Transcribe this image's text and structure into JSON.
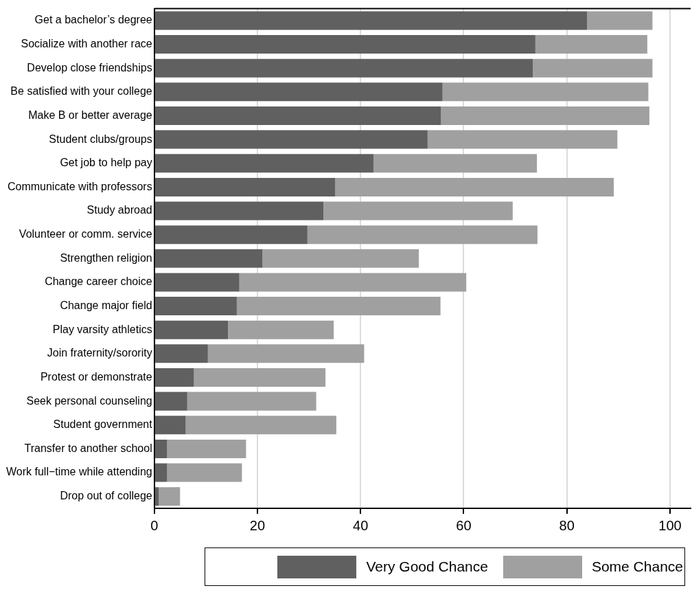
{
  "chart_data": {
    "type": "bar",
    "orientation": "horizontal",
    "stacked": true,
    "categories": [
      "Get a bachelor’s degree",
      "Socialize with another race",
      "Develop close friendships",
      "Be satisfied with your college",
      "Make B or better average",
      "Student clubs/groups",
      "Get job to help pay",
      "Communicate with professors",
      "Study abroad",
      "Volunteer or comm. service",
      "Strengthen religion",
      "Change career choice",
      "Change major field",
      "Play varsity athletics",
      "Join fraternity/sorority",
      "Protest or demonstrate",
      "Seek personal counseling",
      "Student government",
      "Transfer to another school",
      "Work full−time while attending",
      "Drop out of college"
    ],
    "series": [
      {
        "name": "Very Good Chance",
        "color": "#606060",
        "values": [
          83.9,
          73.9,
          73.4,
          55.9,
          55.6,
          53.0,
          42.5,
          35.1,
          32.8,
          29.7,
          21.0,
          16.5,
          16.0,
          14.3,
          10.4,
          7.7,
          6.4,
          6.1,
          2.5,
          2.5,
          0.9
        ]
      },
      {
        "name": "Some Chance",
        "color": "#a0a0a0",
        "values": [
          12.7,
          21.7,
          23.2,
          39.9,
          40.4,
          36.8,
          31.7,
          54.0,
          36.7,
          44.6,
          30.3,
          44.0,
          39.5,
          20.5,
          30.3,
          25.5,
          25.0,
          29.2,
          15.3,
          14.5,
          4.1
        ]
      }
    ],
    "xlim": [
      0,
      104
    ],
    "xticks": [
      0,
      20,
      40,
      60,
      80,
      100
    ],
    "grid": "x",
    "legend": "bottom"
  }
}
